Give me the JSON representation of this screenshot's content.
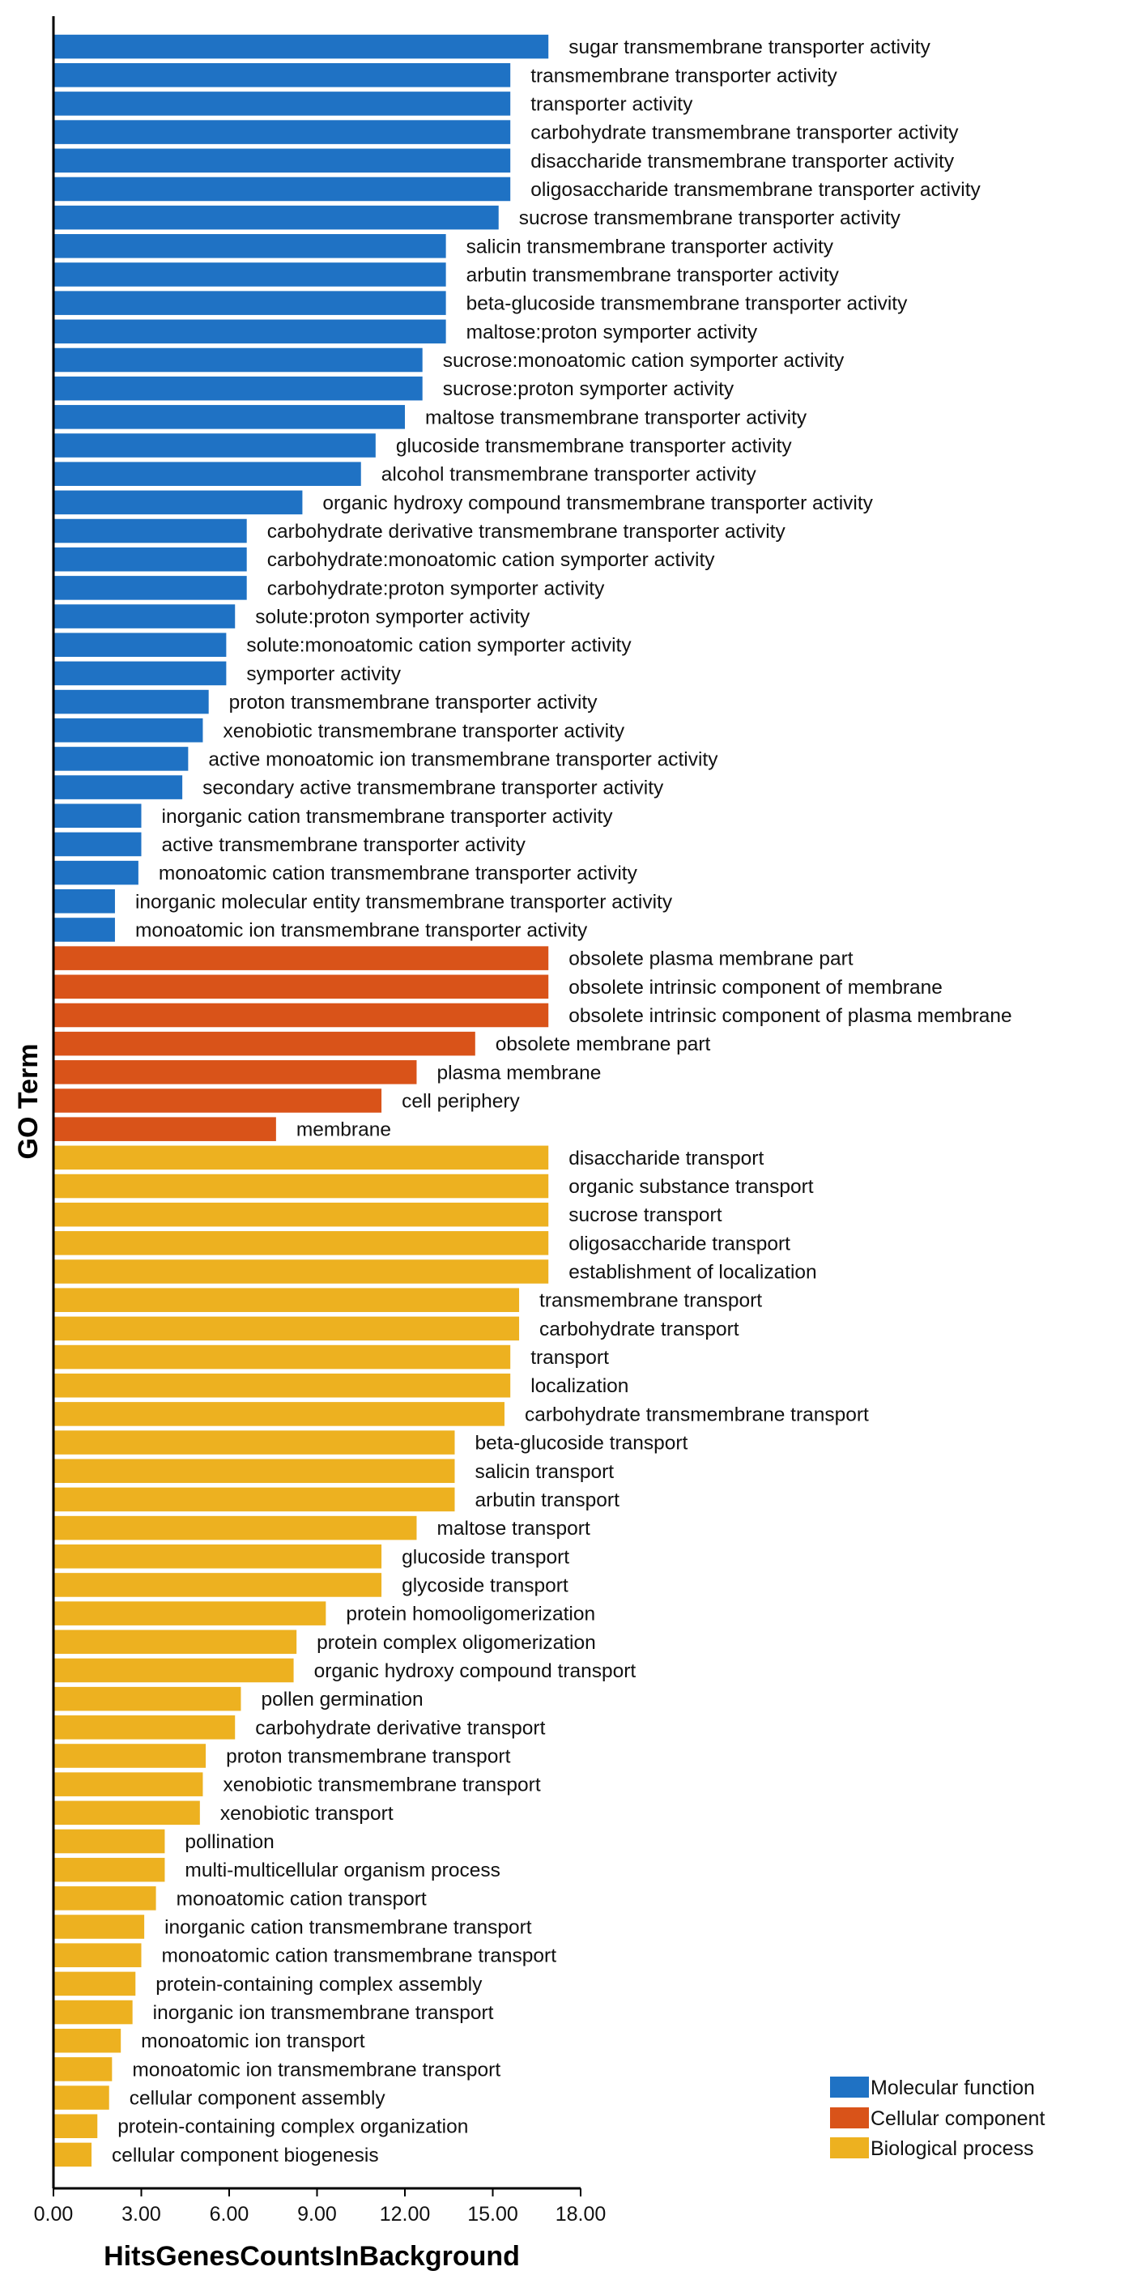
{
  "chart_data": {
    "type": "bar",
    "orientation": "horizontal",
    "xlabel": "HitsGenesCountsInBackground",
    "ylabel": "GO Term",
    "xlim": [
      0,
      18
    ],
    "xticks": [
      "0.00",
      "3.00",
      "6.00",
      "9.00",
      "12.00",
      "15.00",
      "18.00"
    ],
    "legend_position": "bottom-right",
    "series": [
      {
        "name": "Molecular function",
        "color": "#1f72c4",
        "categories": [
          "sugar transmembrane transporter activity",
          "transmembrane transporter activity",
          "transporter activity",
          "carbohydrate transmembrane transporter activity",
          "disaccharide transmembrane transporter activity",
          "oligosaccharide transmembrane transporter activity",
          "sucrose transmembrane transporter activity",
          "salicin transmembrane transporter activity",
          "arbutin transmembrane transporter activity",
          "beta-glucoside transmembrane transporter activity",
          "maltose:proton symporter activity",
          "sucrose:monoatomic cation symporter activity",
          "sucrose:proton symporter activity",
          "maltose transmembrane transporter activity",
          "glucoside transmembrane transporter activity",
          "alcohol transmembrane transporter activity",
          "organic hydroxy compound transmembrane transporter activity",
          "carbohydrate derivative transmembrane transporter activity",
          "carbohydrate:monoatomic cation symporter activity",
          "carbohydrate:proton symporter activity",
          "solute:proton symporter activity",
          "solute:monoatomic cation symporter activity",
          "symporter activity",
          "proton transmembrane transporter activity",
          "xenobiotic transmembrane transporter activity",
          "active monoatomic ion transmembrane transporter activity",
          "secondary active transmembrane transporter activity",
          "inorganic cation transmembrane transporter activity",
          "active transmembrane transporter activity",
          "monoatomic cation transmembrane transporter activity",
          "inorganic molecular entity transmembrane transporter activity",
          "monoatomic ion transmembrane transporter activity"
        ],
        "values": [
          16.9,
          15.6,
          15.6,
          15.6,
          15.6,
          15.6,
          15.2,
          13.4,
          13.4,
          13.4,
          13.4,
          12.6,
          12.6,
          12.0,
          11.0,
          10.5,
          8.5,
          6.6,
          6.6,
          6.6,
          6.2,
          5.9,
          5.9,
          5.3,
          5.1,
          4.6,
          4.4,
          3.0,
          3.0,
          2.9,
          2.1,
          2.1
        ]
      },
      {
        "name": "Cellular component",
        "color": "#d95319",
        "categories": [
          "obsolete plasma membrane part",
          "obsolete intrinsic component of membrane",
          "obsolete intrinsic component of plasma membrane",
          "obsolete membrane part",
          "plasma membrane",
          "cell periphery",
          "membrane"
        ],
        "values": [
          16.9,
          16.9,
          16.9,
          14.4,
          12.4,
          11.2,
          7.6
        ]
      },
      {
        "name": "Biological process",
        "color": "#edb120",
        "categories": [
          "disaccharide transport",
          "organic substance transport",
          "sucrose transport",
          "oligosaccharide transport",
          "establishment of localization",
          "transmembrane transport",
          "carbohydrate transport",
          "transport",
          "localization",
          "carbohydrate transmembrane transport",
          "beta-glucoside transport",
          "salicin transport",
          "arbutin transport",
          "maltose transport",
          "glucoside transport",
          "glycoside transport",
          "protein homooligomerization",
          "protein complex oligomerization",
          "organic hydroxy compound transport",
          "pollen germination",
          "carbohydrate derivative transport",
          "proton transmembrane transport",
          "xenobiotic transmembrane transport",
          "xenobiotic transport",
          "pollination",
          "multi-multicellular organism process",
          "monoatomic cation transport",
          "inorganic cation transmembrane transport",
          "monoatomic cation transmembrane transport",
          "protein-containing complex assembly",
          "inorganic ion transmembrane transport",
          "monoatomic ion transport",
          "monoatomic ion transmembrane transport",
          "cellular component assembly",
          "protein-containing complex organization",
          "cellular component biogenesis"
        ],
        "values": [
          16.9,
          16.9,
          16.9,
          16.9,
          16.9,
          15.9,
          15.9,
          15.6,
          15.6,
          15.4,
          13.7,
          13.7,
          13.7,
          12.4,
          11.2,
          11.2,
          9.3,
          8.3,
          8.2,
          6.4,
          6.2,
          5.2,
          5.1,
          5.0,
          3.8,
          3.8,
          3.5,
          3.1,
          3.0,
          2.8,
          2.7,
          2.3,
          2.0,
          1.9,
          1.5,
          1.3
        ]
      }
    ]
  }
}
